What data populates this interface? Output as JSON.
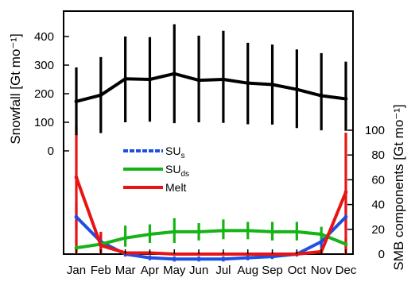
{
  "chart_data": {
    "type": "line",
    "categories": [
      "Jan",
      "Feb",
      "Mar",
      "Apr",
      "May",
      "Jun",
      "Jul",
      "Aug",
      "Sep",
      "Oct",
      "Nov",
      "Dec"
    ],
    "top_panel": {
      "ylabel": "Snowfall [Gt mo⁻¹]",
      "ylim": [
        0,
        470
      ],
      "yticks": [
        0,
        100,
        200,
        300,
        400
      ],
      "ytick_labels": [
        "0",
        "100",
        "200",
        "300",
        "400"
      ],
      "series": [
        {
          "key": "snowfall",
          "color": "#000000",
          "values": [
            173,
            195,
            252,
            250,
            270,
            247,
            250,
            237,
            232,
            215,
            193,
            182
          ],
          "err_low": [
            55,
            62,
            100,
            102,
            97,
            100,
            98,
            93,
            92,
            80,
            72,
            70
          ],
          "err_high": [
            292,
            328,
            400,
            398,
            443,
            403,
            420,
            378,
            372,
            355,
            342,
            312
          ]
        }
      ]
    },
    "bottom_panel": {
      "ylabel": "SMB components [Gt mo⁻¹]",
      "ylim": [
        -5,
        105
      ],
      "yticks": [
        0,
        20,
        40,
        60,
        80,
        100
      ],
      "ytick_labels": [
        "0",
        "20",
        "40",
        "60",
        "80",
        "100"
      ],
      "series": [
        {
          "key": "SUs",
          "name": "SUs",
          "name_base": "SU",
          "name_sub": "s",
          "color": "#1f4fe0",
          "values": [
            30,
            10,
            0,
            -3,
            -4,
            -4,
            -4,
            -3,
            -2,
            0,
            10,
            30
          ],
          "err_low": [
            20,
            5,
            -2,
            -5,
            -6,
            -6,
            -6,
            -5,
            -4,
            -2,
            5,
            20
          ],
          "err_high": [
            42,
            15,
            2,
            -1,
            -2,
            -2,
            -2,
            -1,
            0,
            2,
            15,
            42
          ]
        },
        {
          "key": "SUds",
          "name": "SUds",
          "name_base": "SU",
          "name_sub": "ds",
          "color": "#16b316",
          "values": [
            5,
            8,
            13,
            16,
            18,
            18,
            19,
            19,
            18,
            18,
            16,
            8
          ],
          "err_low": [
            2,
            2,
            6,
            9,
            9,
            11,
            12,
            12,
            11,
            11,
            11,
            3
          ],
          "err_high": [
            11,
            16,
            23,
            24,
            29,
            25,
            28,
            26,
            26,
            26,
            22,
            13
          ]
        },
        {
          "key": "melt",
          "name": "Melt",
          "name_base": "Melt",
          "name_sub": "",
          "color": "#e81414",
          "values": [
            62,
            7,
            1,
            1,
            0,
            0,
            0,
            0,
            0,
            0,
            2,
            50
          ],
          "err_low": [
            0,
            0,
            0,
            0,
            0,
            0,
            0,
            0,
            0,
            0,
            0,
            0
          ],
          "err_high": [
            103,
            18,
            2,
            2,
            1,
            1,
            1,
            1,
            1,
            1,
            5,
            98
          ]
        }
      ]
    }
  }
}
